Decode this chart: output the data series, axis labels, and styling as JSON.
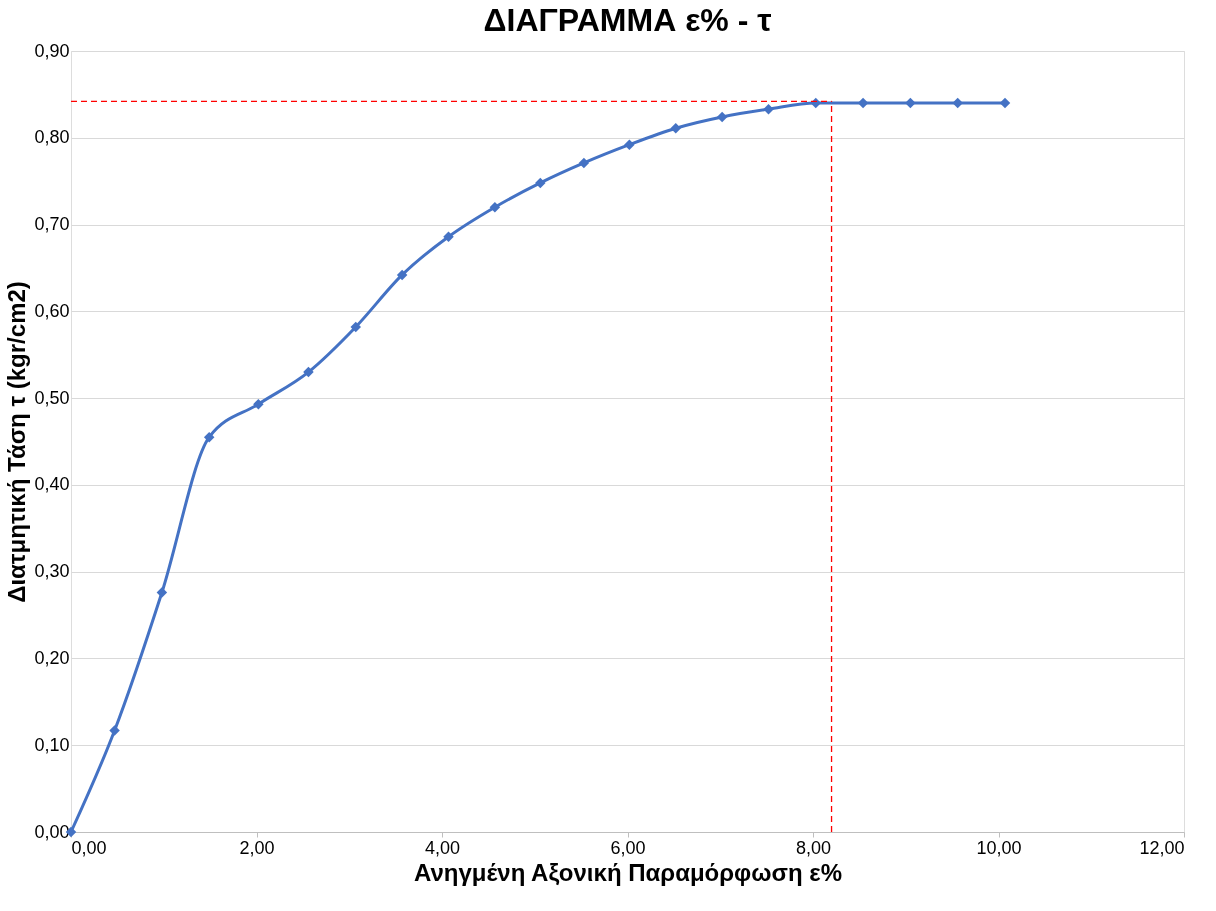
{
  "chart_data": {
    "type": "line",
    "title": "ΔΙΑΓΡΑΜΜΑ ε% - τ",
    "xlabel": "Ανηγμένη Αξονική Παραμόρφωση ε%",
    "ylabel": "Διατμητική Τάση τ (kgr/cm2)",
    "x": [
      0,
      0.47,
      0.98,
      1.49,
      2.02,
      2.56,
      3.07,
      3.57,
      4.07,
      4.57,
      5.06,
      5.53,
      6.02,
      6.52,
      7.02,
      7.52,
      8.03,
      8.54,
      9.05,
      9.56,
      10.07
    ],
    "series": [
      {
        "color": "#4472c4",
        "values": [
          0,
          0.117,
          0.276,
          0.455,
          0.493,
          0.53,
          0.582,
          0.642,
          0.686,
          0.72,
          0.748,
          0.771,
          0.792,
          0.811,
          0.824,
          0.833,
          0.84,
          0.84,
          0.84,
          0.84,
          0.84
        ]
      }
    ],
    "xlim": [
      0,
      12
    ],
    "ylim": [
      0,
      0.9
    ],
    "xticks": [
      {
        "value": 0,
        "label": "0,00"
      },
      {
        "value": 2,
        "label": "2,00"
      },
      {
        "value": 4,
        "label": "4,00"
      },
      {
        "value": 6,
        "label": "6,00"
      },
      {
        "value": 8,
        "label": "8,00"
      },
      {
        "value": 10,
        "label": "10,00"
      },
      {
        "value": 12,
        "label": "12,00"
      }
    ],
    "yticks": [
      {
        "value": 0,
        "label": "0,00"
      },
      {
        "value": 0.1,
        "label": "0,10"
      },
      {
        "value": 0.2,
        "label": "0,20"
      },
      {
        "value": 0.3,
        "label": "0,30"
      },
      {
        "value": 0.4,
        "label": "0,40"
      },
      {
        "value": 0.5,
        "label": "0,50"
      },
      {
        "value": 0.6,
        "label": "0,60"
      },
      {
        "value": 0.7,
        "label": "0,70"
      },
      {
        "value": 0.8,
        "label": "0,80"
      },
      {
        "value": 0.9,
        "label": "0,90"
      }
    ],
    "ref_lines": [
      {
        "axis": "y",
        "value": 0.842,
        "color": "#ff0000",
        "line_style": "dashed"
      },
      {
        "axis": "x",
        "value": 8.2,
        "color": "#ff0000",
        "line_style": "dashed"
      }
    ],
    "grid": "y",
    "marker": "diamond",
    "line_style": "solid"
  }
}
